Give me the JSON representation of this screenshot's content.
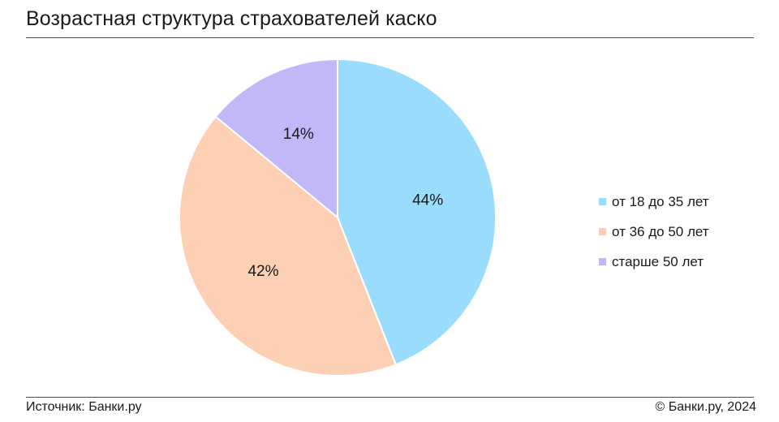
{
  "title": "Возрастная структура страхователей каско",
  "footer": {
    "source": "Источник: Банки.ру",
    "copyright": "© Банки.ру, 2024"
  },
  "chart_data": {
    "type": "pie",
    "title": "Возрастная структура страхователей каско",
    "legend_position": "right",
    "slices": [
      {
        "label": "от 18 до 35 лет",
        "value": 44,
        "display": "44%",
        "color": "#99dcfd"
      },
      {
        "label": "от 36 до 50 лет",
        "value": 42,
        "display": "42%",
        "color": "#fdcfb5"
      },
      {
        "label": "старше 50 лет",
        "value": 14,
        "display": "14%",
        "color": "#c2b8f8"
      }
    ]
  }
}
